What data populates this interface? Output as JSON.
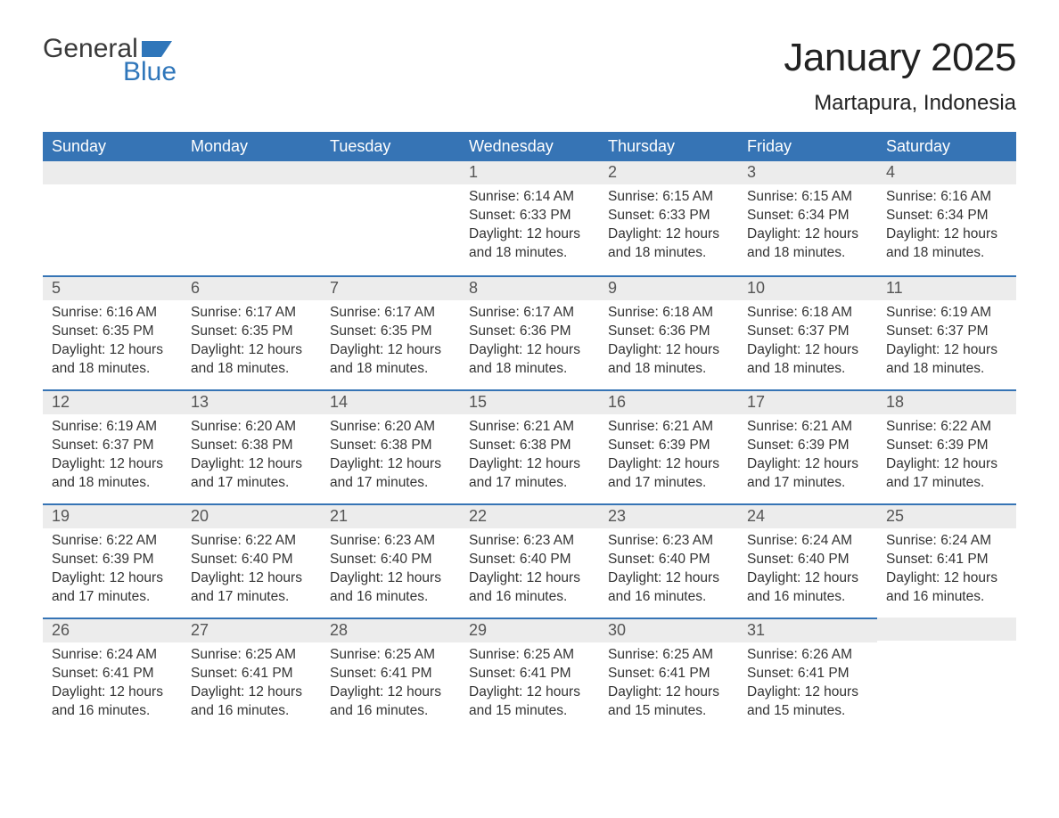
{
  "brand": {
    "word1": "General",
    "word2": "Blue",
    "word1_color": "#3a3a3a",
    "word2_color": "#2f76ba",
    "flag_color": "#2f76ba"
  },
  "title": "January 2025",
  "location": "Martapura, Indonesia",
  "colors": {
    "header_bg": "#3674b5",
    "header_text": "#ffffff",
    "daybar_bg": "#ececec",
    "daybar_border": "#3674b5",
    "body_text": "#333333",
    "daynum_text": "#555555",
    "page_bg": "#ffffff"
  },
  "typography": {
    "title_fontsize": 44,
    "location_fontsize": 24,
    "dayheader_fontsize": 18,
    "daynum_fontsize": 18,
    "body_fontsize": 15.5
  },
  "calendar": {
    "type": "table",
    "columns": [
      "Sunday",
      "Monday",
      "Tuesday",
      "Wednesday",
      "Thursday",
      "Friday",
      "Saturday"
    ],
    "weeks": [
      [
        null,
        null,
        null,
        {
          "n": "1",
          "sunrise": "6:14 AM",
          "sunset": "6:33 PM",
          "daylight": "12 hours and 18 minutes."
        },
        {
          "n": "2",
          "sunrise": "6:15 AM",
          "sunset": "6:33 PM",
          "daylight": "12 hours and 18 minutes."
        },
        {
          "n": "3",
          "sunrise": "6:15 AM",
          "sunset": "6:34 PM",
          "daylight": "12 hours and 18 minutes."
        },
        {
          "n": "4",
          "sunrise": "6:16 AM",
          "sunset": "6:34 PM",
          "daylight": "12 hours and 18 minutes."
        }
      ],
      [
        {
          "n": "5",
          "sunrise": "6:16 AM",
          "sunset": "6:35 PM",
          "daylight": "12 hours and 18 minutes."
        },
        {
          "n": "6",
          "sunrise": "6:17 AM",
          "sunset": "6:35 PM",
          "daylight": "12 hours and 18 minutes."
        },
        {
          "n": "7",
          "sunrise": "6:17 AM",
          "sunset": "6:35 PM",
          "daylight": "12 hours and 18 minutes."
        },
        {
          "n": "8",
          "sunrise": "6:17 AM",
          "sunset": "6:36 PM",
          "daylight": "12 hours and 18 minutes."
        },
        {
          "n": "9",
          "sunrise": "6:18 AM",
          "sunset": "6:36 PM",
          "daylight": "12 hours and 18 minutes."
        },
        {
          "n": "10",
          "sunrise": "6:18 AM",
          "sunset": "6:37 PM",
          "daylight": "12 hours and 18 minutes."
        },
        {
          "n": "11",
          "sunrise": "6:19 AM",
          "sunset": "6:37 PM",
          "daylight": "12 hours and 18 minutes."
        }
      ],
      [
        {
          "n": "12",
          "sunrise": "6:19 AM",
          "sunset": "6:37 PM",
          "daylight": "12 hours and 18 minutes."
        },
        {
          "n": "13",
          "sunrise": "6:20 AM",
          "sunset": "6:38 PM",
          "daylight": "12 hours and 17 minutes."
        },
        {
          "n": "14",
          "sunrise": "6:20 AM",
          "sunset": "6:38 PM",
          "daylight": "12 hours and 17 minutes."
        },
        {
          "n": "15",
          "sunrise": "6:21 AM",
          "sunset": "6:38 PM",
          "daylight": "12 hours and 17 minutes."
        },
        {
          "n": "16",
          "sunrise": "6:21 AM",
          "sunset": "6:39 PM",
          "daylight": "12 hours and 17 minutes."
        },
        {
          "n": "17",
          "sunrise": "6:21 AM",
          "sunset": "6:39 PM",
          "daylight": "12 hours and 17 minutes."
        },
        {
          "n": "18",
          "sunrise": "6:22 AM",
          "sunset": "6:39 PM",
          "daylight": "12 hours and 17 minutes."
        }
      ],
      [
        {
          "n": "19",
          "sunrise": "6:22 AM",
          "sunset": "6:39 PM",
          "daylight": "12 hours and 17 minutes."
        },
        {
          "n": "20",
          "sunrise": "6:22 AM",
          "sunset": "6:40 PM",
          "daylight": "12 hours and 17 minutes."
        },
        {
          "n": "21",
          "sunrise": "6:23 AM",
          "sunset": "6:40 PM",
          "daylight": "12 hours and 16 minutes."
        },
        {
          "n": "22",
          "sunrise": "6:23 AM",
          "sunset": "6:40 PM",
          "daylight": "12 hours and 16 minutes."
        },
        {
          "n": "23",
          "sunrise": "6:23 AM",
          "sunset": "6:40 PM",
          "daylight": "12 hours and 16 minutes."
        },
        {
          "n": "24",
          "sunrise": "6:24 AM",
          "sunset": "6:40 PM",
          "daylight": "12 hours and 16 minutes."
        },
        {
          "n": "25",
          "sunrise": "6:24 AM",
          "sunset": "6:41 PM",
          "daylight": "12 hours and 16 minutes."
        }
      ],
      [
        {
          "n": "26",
          "sunrise": "6:24 AM",
          "sunset": "6:41 PM",
          "daylight": "12 hours and 16 minutes."
        },
        {
          "n": "27",
          "sunrise": "6:25 AM",
          "sunset": "6:41 PM",
          "daylight": "12 hours and 16 minutes."
        },
        {
          "n": "28",
          "sunrise": "6:25 AM",
          "sunset": "6:41 PM",
          "daylight": "12 hours and 16 minutes."
        },
        {
          "n": "29",
          "sunrise": "6:25 AM",
          "sunset": "6:41 PM",
          "daylight": "12 hours and 15 minutes."
        },
        {
          "n": "30",
          "sunrise": "6:25 AM",
          "sunset": "6:41 PM",
          "daylight": "12 hours and 15 minutes."
        },
        {
          "n": "31",
          "sunrise": "6:26 AM",
          "sunset": "6:41 PM",
          "daylight": "12 hours and 15 minutes."
        },
        null
      ]
    ],
    "labels": {
      "sunrise": "Sunrise:",
      "sunset": "Sunset:",
      "daylight": "Daylight:"
    }
  }
}
